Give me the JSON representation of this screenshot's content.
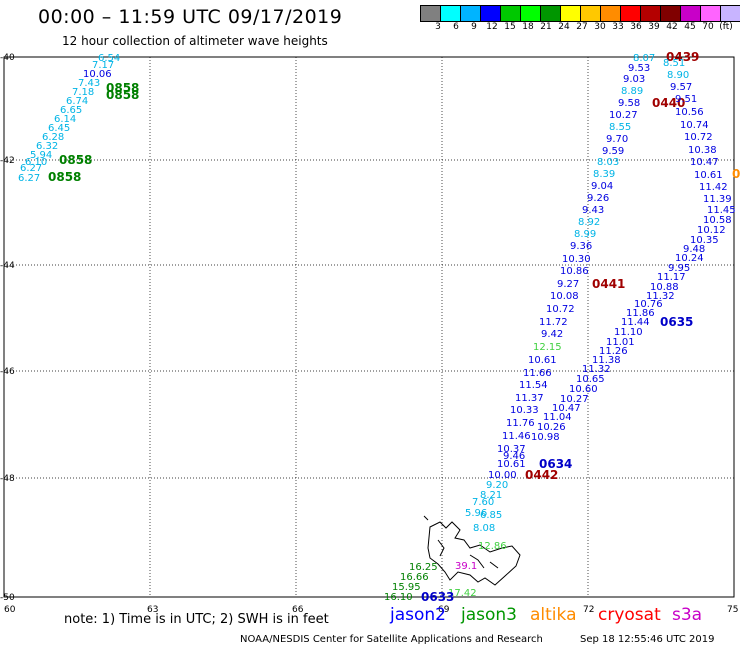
{
  "title": "00:00 – 11:59 UTC 09/17/2019",
  "subtitle": "12 hour collection of altimeter wave heights",
  "colorbar": {
    "colors": [
      "#808080",
      "#00ffff",
      "#00b4ff",
      "#0000ff",
      "#00c800",
      "#00ff00",
      "#009600",
      "#ffff00",
      "#ffc800",
      "#ff8c00",
      "#ff0000",
      "#b40000",
      "#800000",
      "#c800c8",
      "#ff64ff",
      "#c8b4ff",
      "#000000"
    ],
    "labels": [
      "3",
      "6",
      "9",
      "12",
      "15",
      "18",
      "21",
      "24",
      "27",
      "30",
      "33",
      "36",
      "39",
      "42",
      "45",
      "70",
      "(ft)"
    ]
  },
  "axes": {
    "lat_ticks": [
      "-40",
      "-42",
      "-44",
      "-46",
      "-48",
      "-50"
    ],
    "lon_ticks": [
      "60",
      "63",
      "66",
      "69",
      "72",
      "75"
    ]
  },
  "note": "note:  1) Time is in UTC;  2) SWH is in feet",
  "legend": [
    {
      "name": "jason2",
      "color": "#0000ff"
    },
    {
      "name": "jason3",
      "color": "#009600"
    },
    {
      "name": "altika",
      "color": "#ff8c00"
    },
    {
      "name": "cryosat",
      "color": "#ff0000"
    },
    {
      "name": "s3a",
      "color": "#c800c8"
    }
  ],
  "footer": "NOAA/NESDIS Center for Satellite Applications and Research",
  "footer_time": "Sep 18 12:55:46 UTC 2019",
  "tracks": [
    {
      "id": "a",
      "color_cyan": "#00b4e6",
      "time": "0858",
      "time_color": "#006400",
      "values": [
        "6.54",
        "7.17",
        "10.06",
        "7.43",
        "7.18",
        "6.74",
        "6.65",
        "6.14",
        "6.45",
        "6.28",
        "6.32",
        "5.94",
        "6.10",
        "6.27",
        "5.60",
        "6.27"
      ]
    },
    {
      "id": "b",
      "time_top": "0439",
      "time_mid": "0440",
      "time_end": "0635",
      "values": [
        "8.07",
        "9.53",
        "9.03",
        "8.89",
        "9.58",
        "10.27",
        "8.55",
        "9.70",
        "9.59",
        "8.03",
        "8.39",
        "9.04",
        "9.26",
        "9.43",
        "8.92",
        "8.99",
        "9.36",
        "10.30",
        "10.86",
        "9.27",
        "10.08",
        "10.72",
        "11.72",
        "9.42"
      ]
    },
    {
      "id": "c",
      "values": [
        "8.51",
        "8.90",
        "9.57",
        "9.51",
        "10.56",
        "10.74",
        "10.72",
        "10.38",
        "10.47",
        "10.61",
        "11.42",
        "11.39",
        "11.45",
        "10.58",
        "10.12",
        "10.35",
        "9.48",
        "10.24",
        "9.95",
        "11.17",
        "10.88",
        "11.32",
        "10.76",
        "11.86",
        "11.44",
        "11.10",
        "11.01",
        "11.26",
        "11.38",
        "11.32",
        "10.65",
        "10.60",
        "10.27",
        "10.47",
        "11.04",
        "10.26",
        "10.98"
      ]
    },
    {
      "id": "d",
      "time_mid": "0441",
      "time_low": "0442",
      "time_end": "0634",
      "values": [
        "12.15",
        "10.61",
        "11.66",
        "11.54",
        "11.37",
        "10.33",
        "11.76",
        "11.46",
        "10.37",
        "9.46",
        "10.61",
        "10.00",
        "9.20",
        "8.21",
        "7.60",
        "5.96",
        "6.85",
        "8.08"
      ]
    },
    {
      "id": "e",
      "time_end": "0633",
      "values": [
        "12.86",
        "16.25",
        "16.66",
        "15.95",
        "16.10",
        "17.42",
        "39.1"
      ]
    }
  ]
}
